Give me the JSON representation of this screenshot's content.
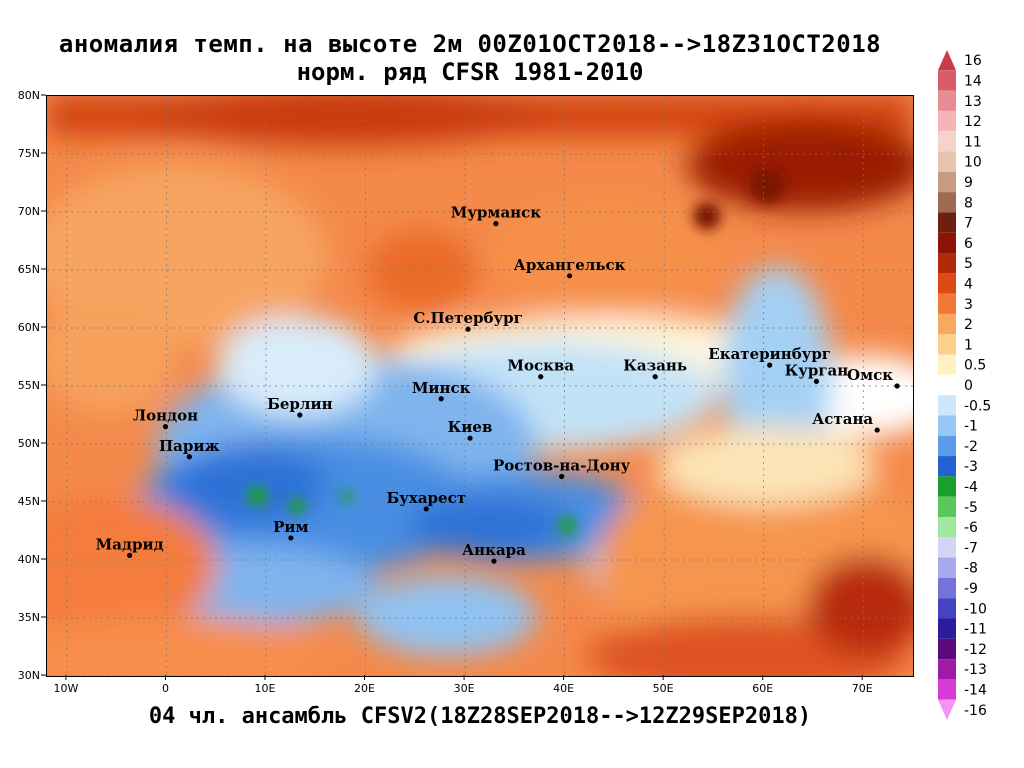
{
  "title": {
    "line1": "аномалия темп. на высоте 2м 00Z01OCT2018-->18Z31OCT2018",
    "line2": "норм. ряд CFSR 1981-2010",
    "bottom": "04 чл. ансамбль CFSV2(18Z28SEP2018-->12Z29SEP2018)"
  },
  "map": {
    "lon_range": [
      -12,
      75
    ],
    "lat_range": [
      30,
      80
    ],
    "lon_ticks": [
      {
        "lon": -10,
        "label": "10W"
      },
      {
        "lon": 0,
        "label": "0"
      },
      {
        "lon": 10,
        "label": "10E"
      },
      {
        "lon": 20,
        "label": "20E"
      },
      {
        "lon": 30,
        "label": "30E"
      },
      {
        "lon": 40,
        "label": "40E"
      },
      {
        "lon": 50,
        "label": "50E"
      },
      {
        "lon": 60,
        "label": "60E"
      },
      {
        "lon": 70,
        "label": "70E"
      }
    ],
    "lat_ticks": [
      {
        "lat": 30,
        "label": "30N"
      },
      {
        "lat": 35,
        "label": "35N"
      },
      {
        "lat": 40,
        "label": "40N"
      },
      {
        "lat": 45,
        "label": "45N"
      },
      {
        "lat": 50,
        "label": "50N"
      },
      {
        "lat": 55,
        "label": "55N"
      },
      {
        "lat": 60,
        "label": "60N"
      },
      {
        "lat": 65,
        "label": "65N"
      },
      {
        "lat": 70,
        "label": "70N"
      },
      {
        "lat": 75,
        "label": "75N"
      },
      {
        "lat": 80,
        "label": "80N"
      }
    ],
    "cities": [
      {
        "name": "Мурманск",
        "lon": 33.1,
        "lat": 69.0
      },
      {
        "name": "Архангельск",
        "lon": 40.5,
        "lat": 64.5
      },
      {
        "name": "С.Петербург",
        "lon": 30.3,
        "lat": 59.9
      },
      {
        "name": "Москва",
        "lon": 37.6,
        "lat": 55.8
      },
      {
        "name": "Казань",
        "lon": 49.1,
        "lat": 55.8
      },
      {
        "name": "Екатеринбург",
        "lon": 60.6,
        "lat": 56.8
      },
      {
        "name": "Курган",
        "lon": 65.3,
        "lat": 55.4
      },
      {
        "name": "Омск",
        "lon": 73.4,
        "lat": 55.0
      },
      {
        "name": "Астана",
        "lon": 71.4,
        "lat": 51.2
      },
      {
        "name": "Минск",
        "lon": 27.6,
        "lat": 53.9
      },
      {
        "name": "Берлин",
        "lon": 13.4,
        "lat": 52.5
      },
      {
        "name": "Лондон",
        "lon": -0.1,
        "lat": 51.5
      },
      {
        "name": "Париж",
        "lon": 2.3,
        "lat": 48.9
      },
      {
        "name": "Киев",
        "lon": 30.5,
        "lat": 50.5
      },
      {
        "name": "Ростов-на-Дону",
        "lon": 39.7,
        "lat": 47.2
      },
      {
        "name": "Бухарест",
        "lon": 26.1,
        "lat": 44.4
      },
      {
        "name": "Рим",
        "lon": 12.5,
        "lat": 41.9
      },
      {
        "name": "Мадрид",
        "lon": -3.7,
        "lat": 40.4
      },
      {
        "name": "Анкара",
        "lon": 32.9,
        "lat": 39.9
      }
    ]
  },
  "colorbar": {
    "levels": [
      {
        "label": "16",
        "color": "#c83c4a"
      },
      {
        "label": "14",
        "color": "#d85c6a"
      },
      {
        "label": "13",
        "color": "#e88c96"
      },
      {
        "label": "12",
        "color": "#f4b4b8"
      },
      {
        "label": "11",
        "color": "#f6d2cc"
      },
      {
        "label": "10",
        "color": "#e8c4b0"
      },
      {
        "label": "9",
        "color": "#c89c80"
      },
      {
        "label": "8",
        "color": "#a06a50"
      },
      {
        "label": "7",
        "color": "#6e2010"
      },
      {
        "label": "6",
        "color": "#8c1404"
      },
      {
        "label": "5",
        "color": "#b02a0a"
      },
      {
        "label": "4",
        "color": "#dc4a16"
      },
      {
        "label": "3",
        "color": "#f07a34"
      },
      {
        "label": "2",
        "color": "#f8a860"
      },
      {
        "label": "1",
        "color": "#fccf8c"
      },
      {
        "label": "0.5",
        "color": "#fff2c2"
      },
      {
        "label": "0",
        "color": "#ffffff"
      },
      {
        "label": "-0.5",
        "color": "#cce8fa"
      },
      {
        "label": "-1",
        "color": "#96c8f4"
      },
      {
        "label": "-2",
        "color": "#5a9ce8"
      },
      {
        "label": "-3",
        "color": "#2462d2"
      },
      {
        "label": "-4",
        "color": "#1aa02a"
      },
      {
        "label": "-5",
        "color": "#58c858"
      },
      {
        "label": "-6",
        "color": "#a0e8a0"
      },
      {
        "label": "-7",
        "color": "#d4d4f4"
      },
      {
        "label": "-8",
        "color": "#a8a8ec"
      },
      {
        "label": "-9",
        "color": "#7474d8"
      },
      {
        "label": "-10",
        "color": "#4444c0"
      },
      {
        "label": "-11",
        "color": "#2a1e9c"
      },
      {
        "label": "-12",
        "color": "#5a0a7a"
      },
      {
        "label": "-13",
        "color": "#a01aa8"
      },
      {
        "label": "-14",
        "color": "#d83cd8"
      },
      {
        "label": "-16",
        "color": "#f494f4"
      }
    ]
  }
}
